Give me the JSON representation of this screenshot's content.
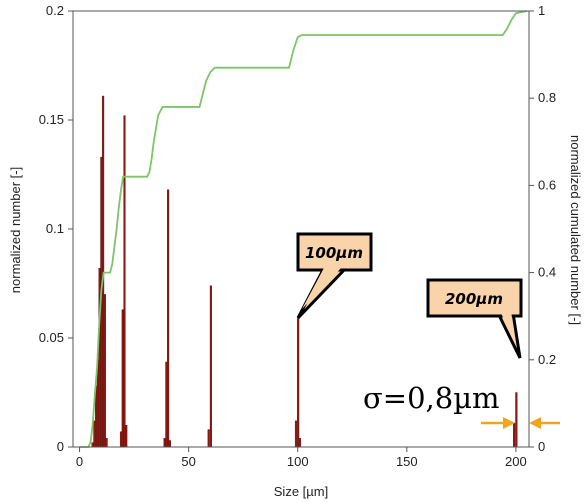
{
  "chart_data": {
    "type": "bar",
    "xlabel": "Size [µm]",
    "ylabel_left": "normalized number [-]",
    "ylabel_right": "normalized cumulated number [-]",
    "xlim": [
      -3,
      206
    ],
    "ylim_left": [
      0,
      0.2
    ],
    "ylim_right": [
      0,
      1
    ],
    "x_ticks": [
      "0",
      "50",
      "100",
      "150",
      "200"
    ],
    "y_left_ticks": [
      "0",
      "0.05",
      "0.1",
      "0.15",
      "0.2"
    ],
    "y_right_ticks": [
      "0",
      "0.2",
      "0.4",
      "0.6",
      "0.8",
      "1"
    ],
    "grid": false,
    "series": [
      {
        "kind": "bars",
        "color": "#8b1a12",
        "points": [
          {
            "x": 6.0,
            "y": 0.002
          },
          {
            "x": 6.8,
            "y": 0.012
          },
          {
            "x": 7.6,
            "y": 0.028
          },
          {
            "x": 8.4,
            "y": 0.04
          },
          {
            "x": 9.2,
            "y": 0.082
          },
          {
            "x": 10.0,
            "y": 0.133
          },
          {
            "x": 10.8,
            "y": 0.161
          },
          {
            "x": 11.6,
            "y": 0.07
          },
          {
            "x": 12.4,
            "y": 0.004
          },
          {
            "x": 19.0,
            "y": 0.007
          },
          {
            "x": 19.8,
            "y": 0.063
          },
          {
            "x": 20.6,
            "y": 0.152
          },
          {
            "x": 21.4,
            "y": 0.01
          },
          {
            "x": 39.0,
            "y": 0.004
          },
          {
            "x": 39.8,
            "y": 0.039
          },
          {
            "x": 40.6,
            "y": 0.118
          },
          {
            "x": 41.4,
            "y": 0.003
          },
          {
            "x": 59.2,
            "y": 0.008
          },
          {
            "x": 60.2,
            "y": 0.074
          },
          {
            "x": 99.2,
            "y": 0.012
          },
          {
            "x": 100.2,
            "y": 0.059
          },
          {
            "x": 101.0,
            "y": 0.004
          },
          {
            "x": 199.2,
            "y": 0.011
          },
          {
            "x": 200.2,
            "y": 0.025
          }
        ]
      },
      {
        "kind": "cumulative_line",
        "axis": "right",
        "color": "#7dc46a",
        "points": [
          [
            0,
            0
          ],
          [
            4,
            0
          ],
          [
            5,
            0.01
          ],
          [
            6,
            0.05
          ],
          [
            7,
            0.12
          ],
          [
            8,
            0.18
          ],
          [
            9,
            0.28
          ],
          [
            10,
            0.36
          ],
          [
            11,
            0.4
          ],
          [
            14,
            0.4
          ],
          [
            15,
            0.42
          ],
          [
            16,
            0.46
          ],
          [
            17,
            0.5
          ],
          [
            18,
            0.55
          ],
          [
            19,
            0.59
          ],
          [
            20,
            0.62
          ],
          [
            31,
            0.62
          ],
          [
            32,
            0.63
          ],
          [
            33,
            0.66
          ],
          [
            34,
            0.7
          ],
          [
            35,
            0.73
          ],
          [
            36,
            0.76
          ],
          [
            38,
            0.78
          ],
          [
            55,
            0.78
          ],
          [
            56,
            0.8
          ],
          [
            57,
            0.82
          ],
          [
            58,
            0.84
          ],
          [
            60,
            0.86
          ],
          [
            62,
            0.87
          ],
          [
            96,
            0.87
          ],
          [
            97,
            0.89
          ],
          [
            98,
            0.91
          ],
          [
            100,
            0.94
          ],
          [
            102,
            0.945
          ],
          [
            194,
            0.945
          ],
          [
            196,
            0.96
          ],
          [
            198,
            0.98
          ],
          [
            200,
            0.995
          ],
          [
            205,
            1.0
          ]
        ]
      }
    ],
    "annotations": {
      "callout_100": "100µm",
      "callout_200": "200µm",
      "sigma": "σ=0,8µm"
    },
    "colors": {
      "callout_fill": "#f9d3a9",
      "arrow": "#f2a51a"
    }
  }
}
